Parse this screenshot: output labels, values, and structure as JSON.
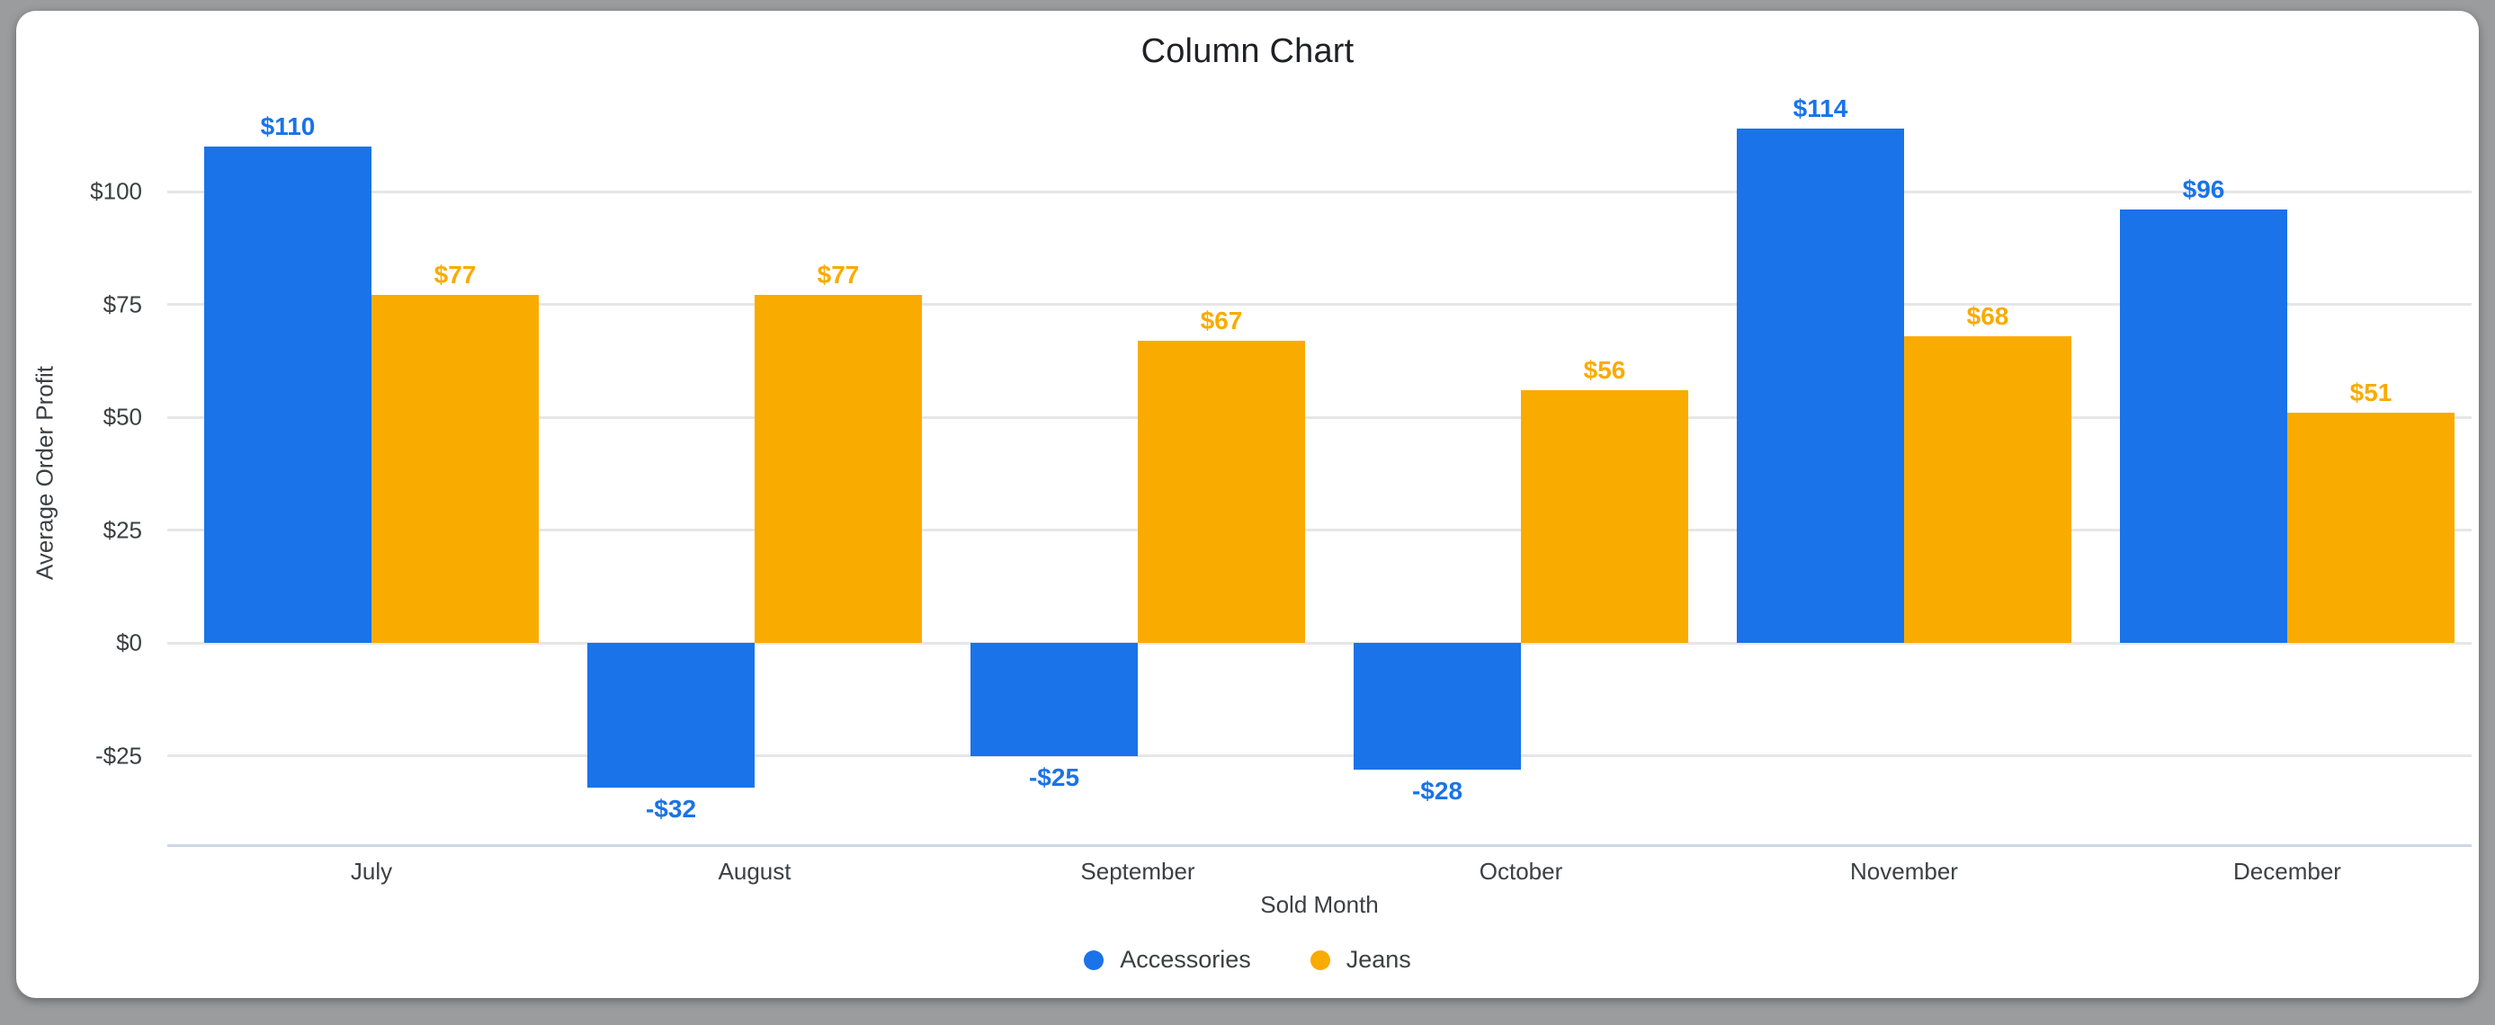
{
  "window": {
    "background_color": "#9a9c9e",
    "card_color": "#ffffff"
  },
  "chart_data": {
    "type": "bar",
    "title": "Column Chart",
    "xlabel": "Sold Month",
    "ylabel": "Average Order Profit",
    "categories": [
      "July",
      "August",
      "September",
      "October",
      "November",
      "December"
    ],
    "series": [
      {
        "name": "Accessories",
        "color": "#1a73e8",
        "values": [
          110,
          -32,
          -25,
          -28,
          114,
          96
        ],
        "labels": [
          "$110",
          "-$32",
          "-$25",
          "-$28",
          "$114",
          "$96"
        ]
      },
      {
        "name": "Jeans",
        "color": "#f9ab00",
        "values": [
          77,
          77,
          67,
          56,
          68,
          51
        ],
        "labels": [
          "$77",
          "$77",
          "$67",
          "$56",
          "$68",
          "$51"
        ]
      }
    ],
    "y_ticks": [
      {
        "value": 100,
        "label": "$100"
      },
      {
        "value": 75,
        "label": "$75"
      },
      {
        "value": 50,
        "label": "$50"
      },
      {
        "value": 25,
        "label": "$25"
      },
      {
        "value": 0,
        "label": "$0"
      },
      {
        "value": -25,
        "label": "-$25"
      }
    ],
    "ylim": [
      -45,
      120
    ],
    "grid": true,
    "legend_position": "bottom",
    "gridline_color": "#e6e6e6",
    "axis_line_color": "#cdd7e7",
    "text_color": "#3c4043",
    "title_color": "#202124"
  }
}
